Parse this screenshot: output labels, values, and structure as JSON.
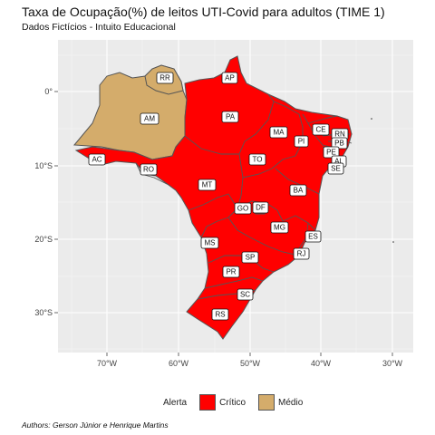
{
  "title": "Taxa de Ocupação(%) de leitos UTI-Covid para adultos (TIME 1)",
  "subtitle": "Dados Fictícios - Intuito Educacional",
  "caption": "Authors: Gerson Júnior e Henrique Martins",
  "colors": {
    "critico": "#ff0000",
    "medio": "#d4ac6b",
    "panel": "#ebebeb",
    "grid": "#ffffff",
    "border": "#595959"
  },
  "axes": {
    "x_ticks": [
      "70°W",
      "60°W",
      "50°W",
      "40°W",
      "30°W"
    ],
    "y_ticks": [
      "0°",
      "10°S",
      "20°S",
      "30°S"
    ]
  },
  "legend": {
    "title": "Alerta",
    "items": [
      {
        "label": "Crítico",
        "color": "#ff0000"
      },
      {
        "label": "Médio",
        "color": "#d4ac6b"
      }
    ]
  },
  "states": [
    {
      "abbr": "RR",
      "alert": "Médio"
    },
    {
      "abbr": "AP",
      "alert": "Crítico"
    },
    {
      "abbr": "AM",
      "alert": "Médio"
    },
    {
      "abbr": "PA",
      "alert": "Crítico"
    },
    {
      "abbr": "MA",
      "alert": "Crítico"
    },
    {
      "abbr": "CE",
      "alert": "Crítico"
    },
    {
      "abbr": "RN",
      "alert": "Crítico"
    },
    {
      "abbr": "PB",
      "alert": "Crítico"
    },
    {
      "abbr": "PE",
      "alert": "Crítico"
    },
    {
      "abbr": "AL",
      "alert": "Crítico"
    },
    {
      "abbr": "SE",
      "alert": "Crítico"
    },
    {
      "abbr": "PI",
      "alert": "Crítico"
    },
    {
      "abbr": "AC",
      "alert": "Crítico"
    },
    {
      "abbr": "RO",
      "alert": "Crítico"
    },
    {
      "abbr": "TO",
      "alert": "Crítico"
    },
    {
      "abbr": "BA",
      "alert": "Crítico"
    },
    {
      "abbr": "MT",
      "alert": "Crítico"
    },
    {
      "abbr": "GO",
      "alert": "Crítico"
    },
    {
      "abbr": "DF",
      "alert": "Crítico"
    },
    {
      "abbr": "MG",
      "alert": "Crítico"
    },
    {
      "abbr": "ES",
      "alert": "Crítico"
    },
    {
      "abbr": "MS",
      "alert": "Crítico"
    },
    {
      "abbr": "SP",
      "alert": "Crítico"
    },
    {
      "abbr": "RJ",
      "alert": "Crítico"
    },
    {
      "abbr": "PR",
      "alert": "Crítico"
    },
    {
      "abbr": "SC",
      "alert": "Crítico"
    },
    {
      "abbr": "RS",
      "alert": "Crítico"
    }
  ]
}
